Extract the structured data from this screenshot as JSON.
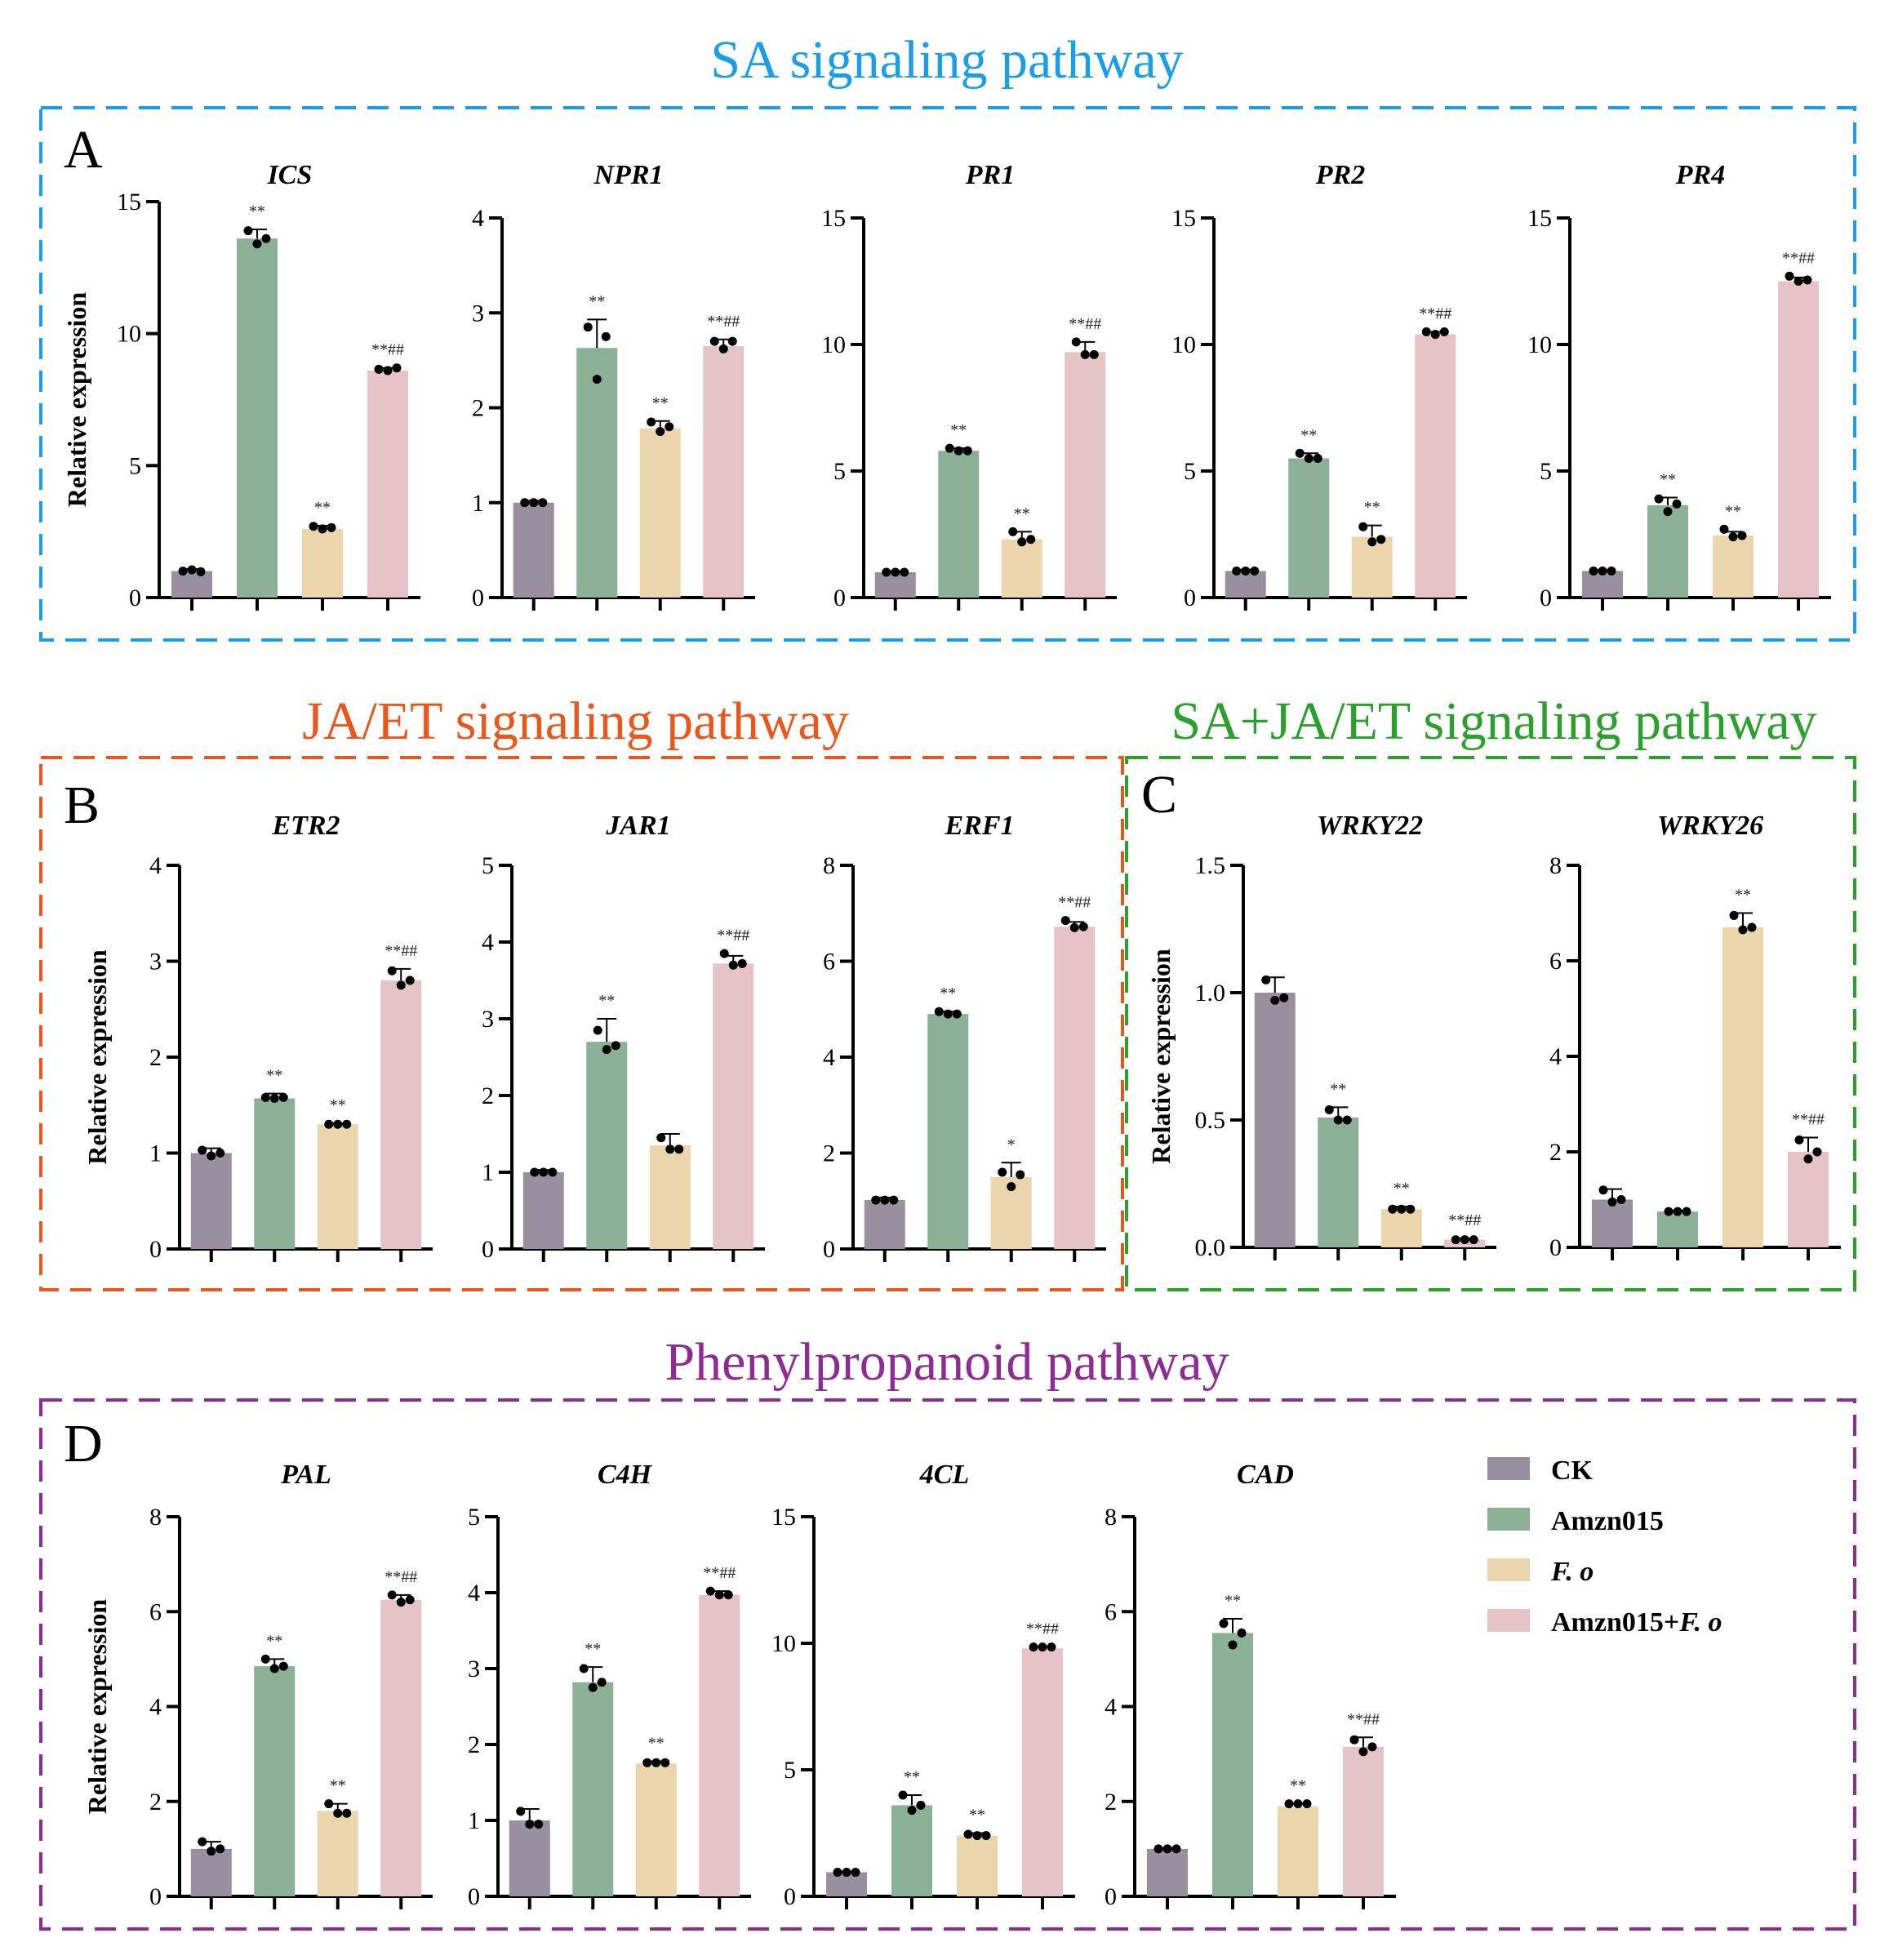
{
  "sections": [
    {
      "id": "sa",
      "title": "SA signaling pathway",
      "color": "#1a9ee8",
      "letter": "A"
    },
    {
      "id": "jaet",
      "title": "JA/ET signaling pathway",
      "color": "#e8581d",
      "letter": "B"
    },
    {
      "id": "sajaet",
      "title": "SA+JA/ET signaling pathway",
      "color": "#2ca02c",
      "letter": "C"
    },
    {
      "id": "phenyl",
      "title": "Phenylpropanoid pathway",
      "color": "#8e2c95",
      "letter": "D"
    }
  ],
  "y_axis_label": "Relative expression",
  "legend": {
    "items": [
      {
        "label": "CK",
        "color": "#9a8f9f",
        "italic": false
      },
      {
        "label": "Amzn015",
        "color": "#8bb096",
        "italic": false
      },
      {
        "label": "F. o",
        "color": "#ead5ad",
        "italic": true
      },
      {
        "label": "Amzn015+",
        "label_italic_part": "F. o",
        "color": "#e5c3c7",
        "italic": false
      }
    ]
  },
  "chart_data": [
    {
      "type": "bar",
      "section": "A",
      "title": "ICS",
      "ylim": [
        0,
        15
      ],
      "yticks": [
        "0",
        "5",
        "10",
        "15"
      ],
      "ylabel": "Relative expression",
      "categories": [
        "CK",
        "Amzn015",
        "F. o",
        "Amzn015+F. o"
      ],
      "values": [
        1.0,
        13.6,
        2.6,
        8.6
      ],
      "errors": [
        0.08,
        0.35,
        0.12,
        0.1
      ],
      "points": [
        [
          1.0,
          1.05,
          0.98
        ],
        [
          13.9,
          13.4,
          13.6
        ],
        [
          2.7,
          2.6,
          2.65
        ],
        [
          8.65,
          8.6,
          8.7
        ]
      ],
      "significance": [
        "",
        "**",
        "**",
        "**##"
      ]
    },
    {
      "type": "bar",
      "section": "A",
      "title": "NPR1",
      "ylim": [
        0,
        4
      ],
      "yticks": [
        "0",
        "1",
        "2",
        "3",
        "4"
      ],
      "ylabel": "",
      "categories": [
        "CK",
        "Amzn015",
        "F. o",
        "Amzn015+F. o"
      ],
      "values": [
        1.0,
        2.63,
        1.78,
        2.65
      ],
      "errors": [
        0.02,
        0.3,
        0.08,
        0.07
      ],
      "points": [
        [
          1.0,
          1.0,
          1.0
        ],
        [
          2.85,
          2.3,
          2.75
        ],
        [
          1.85,
          1.75,
          1.8
        ],
        [
          2.7,
          2.62,
          2.7
        ]
      ],
      "significance": [
        "",
        "**",
        "**",
        "**##"
      ]
    },
    {
      "type": "bar",
      "section": "A",
      "title": "PR1",
      "ylim": [
        0,
        15
      ],
      "yticks": [
        "0",
        "5",
        "10",
        "15"
      ],
      "ylabel": "",
      "categories": [
        "CK",
        "Amzn015",
        "F. o",
        "Amzn015+F. o"
      ],
      "values": [
        1.0,
        5.8,
        2.3,
        9.7
      ],
      "errors": [
        0.05,
        0.1,
        0.3,
        0.4
      ],
      "points": [
        [
          1.0,
          1.0,
          1.0
        ],
        [
          5.9,
          5.8,
          5.8
        ],
        [
          2.6,
          2.2,
          2.3
        ],
        [
          10.1,
          9.6,
          9.6
        ]
      ],
      "significance": [
        "",
        "**",
        "**",
        "**##"
      ]
    },
    {
      "type": "bar",
      "section": "A",
      "title": "PR2",
      "ylim": [
        0,
        15
      ],
      "yticks": [
        "0",
        "5",
        "10",
        "15"
      ],
      "ylabel": "",
      "categories": [
        "CK",
        "Amzn015",
        "F. o",
        "Amzn015+F. o"
      ],
      "values": [
        1.05,
        5.5,
        2.4,
        10.4
      ],
      "errors": [
        0.05,
        0.2,
        0.45,
        0.1
      ],
      "points": [
        [
          1.05,
          1.05,
          1.05
        ],
        [
          5.7,
          5.5,
          5.5
        ],
        [
          2.8,
          2.2,
          2.3
        ],
        [
          10.5,
          10.4,
          10.5
        ]
      ],
      "significance": [
        "",
        "**",
        "**",
        "**##"
      ]
    },
    {
      "type": "bar",
      "section": "A",
      "title": "PR4",
      "ylim": [
        0,
        15
      ],
      "yticks": [
        "0",
        "5",
        "10",
        "15"
      ],
      "ylabel": "",
      "categories": [
        "CK",
        "Amzn015",
        "F. o",
        "Amzn015+F. o"
      ],
      "values": [
        1.05,
        3.65,
        2.45,
        12.5
      ],
      "errors": [
        0.03,
        0.3,
        0.15,
        0.15
      ],
      "points": [
        [
          1.05,
          1.05,
          1.05
        ],
        [
          3.9,
          3.4,
          3.7
        ],
        [
          2.7,
          2.4,
          2.45
        ],
        [
          12.7,
          12.5,
          12.55
        ]
      ],
      "significance": [
        "",
        "**",
        "**",
        "**##"
      ]
    },
    {
      "type": "bar",
      "section": "B",
      "title": "ETR2",
      "ylim": [
        0,
        4
      ],
      "yticks": [
        "0",
        "1",
        "2",
        "3",
        "4"
      ],
      "ylabel": "Relative expression",
      "categories": [
        "CK",
        "Amzn015",
        "F. o",
        "Amzn015+F. o"
      ],
      "values": [
        1.0,
        1.57,
        1.3,
        2.8
      ],
      "errors": [
        0.05,
        0.05,
        0.01,
        0.12
      ],
      "points": [
        [
          1.03,
          0.97,
          1.0
        ],
        [
          1.58,
          1.57,
          1.58
        ],
        [
          1.3,
          1.3,
          1.3
        ],
        [
          2.9,
          2.75,
          2.8
        ]
      ],
      "significance": [
        "",
        "**",
        "**",
        "**##"
      ]
    },
    {
      "type": "bar",
      "section": "B",
      "title": "JAR1",
      "ylim": [
        0,
        5
      ],
      "yticks": [
        "0",
        "1",
        "2",
        "3",
        "4",
        "5"
      ],
      "ylabel": "",
      "categories": [
        "CK",
        "Amzn015",
        "F. o",
        "Amzn015+F. o"
      ],
      "values": [
        1.0,
        2.7,
        1.35,
        3.72
      ],
      "errors": [
        0.03,
        0.3,
        0.15,
        0.1
      ],
      "points": [
        [
          1.0,
          1.0,
          1.0
        ],
        [
          2.85,
          2.6,
          2.65
        ],
        [
          1.45,
          1.3,
          1.3
        ],
        [
          3.85,
          3.7,
          3.72
        ]
      ],
      "significance": [
        "",
        "**",
        "",
        "**##"
      ]
    },
    {
      "type": "bar",
      "section": "B",
      "title": "ERF1",
      "ylim": [
        0,
        8
      ],
      "yticks": [
        "0",
        "2",
        "4",
        "6",
        "8"
      ],
      "ylabel": "",
      "categories": [
        "CK",
        "Amzn015",
        "F. o",
        "Amzn015+F. o"
      ],
      "values": [
        1.02,
        4.9,
        1.5,
        6.72
      ],
      "errors": [
        0.05,
        0.05,
        0.3,
        0.1
      ],
      "points": [
        [
          1.02,
          1.02,
          1.02
        ],
        [
          4.95,
          4.9,
          4.9
        ],
        [
          1.6,
          1.3,
          1.55
        ],
        [
          6.85,
          6.7,
          6.72
        ]
      ],
      "significance": [
        "",
        "**",
        "*",
        "**##"
      ]
    },
    {
      "type": "bar",
      "section": "C",
      "title": "WRKY22",
      "ylim": [
        0,
        1.5
      ],
      "yticks": [
        "0.0",
        "0.5",
        "1.0",
        "1.5"
      ],
      "ylabel": "Relative expression",
      "categories": [
        "CK",
        "Amzn015",
        "F. o",
        "Amzn015+F. o"
      ],
      "values": [
        1.0,
        0.51,
        0.15,
        0.03
      ],
      "errors": [
        0.06,
        0.04,
        0.01,
        0.005
      ],
      "points": [
        [
          1.05,
          0.97,
          0.98
        ],
        [
          0.54,
          0.5,
          0.5
        ],
        [
          0.15,
          0.15,
          0.15
        ],
        [
          0.03,
          0.03,
          0.03
        ]
      ],
      "significance": [
        "",
        "**",
        "**",
        "**##"
      ]
    },
    {
      "type": "bar",
      "section": "C",
      "title": "WRKY26",
      "ylim": [
        0,
        8
      ],
      "yticks": [
        "0",
        "2",
        "4",
        "6",
        "8"
      ],
      "ylabel": "",
      "categories": [
        "CK",
        "Amzn015",
        "F. o",
        "Amzn015+F. o"
      ],
      "values": [
        1.0,
        0.75,
        6.7,
        2.0
      ],
      "errors": [
        0.22,
        0.02,
        0.3,
        0.3
      ],
      "points": [
        [
          1.2,
          0.95,
          1.0
        ],
        [
          0.75,
          0.75,
          0.75
        ],
        [
          6.95,
          6.65,
          6.7
        ],
        [
          2.25,
          1.85,
          2.0
        ]
      ],
      "significance": [
        "",
        "",
        "**",
        "**##"
      ]
    },
    {
      "type": "bar",
      "section": "D",
      "title": "PAL",
      "ylim": [
        0,
        8
      ],
      "yticks": [
        "0",
        "2",
        "4",
        "6",
        "8"
      ],
      "ylabel": "Relative expression",
      "categories": [
        "CK",
        "Amzn015",
        "F. o",
        "Amzn015+F. o"
      ],
      "values": [
        1.0,
        4.85,
        1.8,
        6.25
      ],
      "errors": [
        0.15,
        0.15,
        0.15,
        0.1
      ],
      "points": [
        [
          1.15,
          0.95,
          1.0
        ],
        [
          5.0,
          4.8,
          4.85
        ],
        [
          1.95,
          1.75,
          1.75
        ],
        [
          6.35,
          6.2,
          6.25
        ]
      ],
      "significance": [
        "",
        "**",
        "**",
        "**##"
      ]
    },
    {
      "type": "bar",
      "section": "D",
      "title": "C4H",
      "ylim": [
        0,
        5
      ],
      "yticks": [
        "0",
        "1",
        "2",
        "3",
        "4",
        "5"
      ],
      "ylabel": "",
      "categories": [
        "CK",
        "Amzn015",
        "F. o",
        "Amzn015+F. o"
      ],
      "values": [
        1.0,
        2.82,
        1.75,
        3.97
      ],
      "errors": [
        0.15,
        0.2,
        0.03,
        0.05
      ],
      "points": [
        [
          1.12,
          0.95,
          0.95
        ],
        [
          3.0,
          2.75,
          2.82
        ],
        [
          1.76,
          1.76,
          1.76
        ],
        [
          4.02,
          3.97,
          3.97
        ]
      ],
      "significance": [
        "",
        "**",
        "**",
        "**##"
      ]
    },
    {
      "type": "bar",
      "section": "D",
      "title": "4CL",
      "ylim": [
        0,
        15
      ],
      "yticks": [
        "0",
        "5",
        "10",
        "15"
      ],
      "ylabel": "",
      "categories": [
        "CK",
        "Amzn015",
        "F. o",
        "Amzn015+F. o"
      ],
      "values": [
        0.95,
        3.6,
        2.4,
        9.8
      ],
      "errors": [
        0.02,
        0.4,
        0.1,
        0.05
      ],
      "points": [
        [
          0.95,
          0.95,
          0.95
        ],
        [
          4.0,
          3.4,
          3.6
        ],
        [
          2.45,
          2.4,
          2.4
        ],
        [
          9.85,
          9.85,
          9.85
        ]
      ],
      "significance": [
        "",
        "**",
        "**",
        "**##"
      ]
    },
    {
      "type": "bar",
      "section": "D",
      "title": "CAD",
      "ylim": [
        0,
        8
      ],
      "yticks": [
        "0",
        "2",
        "4",
        "6",
        "8"
      ],
      "ylabel": "",
      "categories": [
        "CK",
        "Amzn015",
        "F. o",
        "Amzn015+F. o"
      ],
      "values": [
        1.0,
        5.55,
        1.9,
        3.15
      ],
      "errors": [
        0.02,
        0.3,
        0.05,
        0.2
      ],
      "points": [
        [
          1.0,
          1.0,
          1.0
        ],
        [
          5.75,
          5.3,
          5.55
        ],
        [
          1.95,
          1.95,
          1.95
        ],
        [
          3.3,
          3.05,
          3.15
        ]
      ],
      "significance": [
        "",
        "**",
        "**",
        "**##"
      ]
    }
  ]
}
